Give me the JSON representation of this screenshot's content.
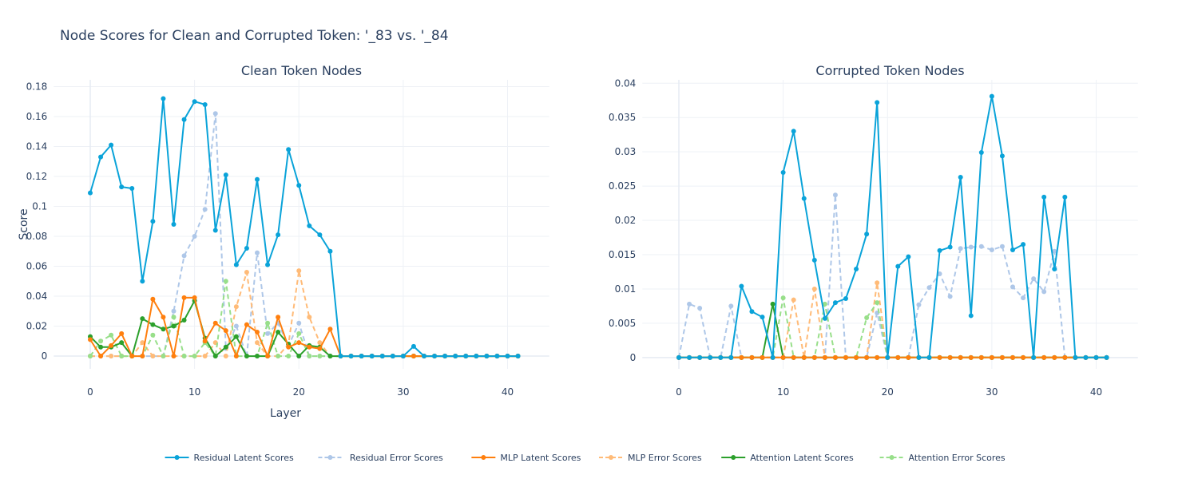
{
  "title": "Node Scores for Clean and Corrupted Token: '_83 vs. '_84",
  "chart_data": [
    {
      "type": "line",
      "title": "Clean Token Nodes",
      "xlabel": "Layer",
      "ylabel": "Score",
      "xlim": [
        -3.5,
        44
      ],
      "ylim": [
        -0.0085,
        0.1845
      ],
      "xticks": [
        0,
        10,
        20,
        30,
        40
      ],
      "yticks": [
        0,
        0.02,
        0.04,
        0.06,
        0.08,
        0.1,
        0.12,
        0.14,
        0.16,
        0.18
      ],
      "ytick_labels": [
        "0",
        "0.02",
        "0.04",
        "0.06",
        "0.08",
        "0.1",
        "0.12",
        "0.14",
        "0.16",
        "0.18"
      ],
      "series": [
        {
          "name": "Residual Latent Scores",
          "values": [
            0.109,
            0.133,
            0.141,
            0.113,
            0.112,
            0.05,
            0.09,
            0.172,
            0.088,
            0.158,
            0.17,
            0.168,
            0.084,
            0.121,
            0.061,
            0.072,
            0.118,
            0.061,
            0.081,
            0.138,
            0.114,
            0.087,
            0.081,
            0.07,
            0,
            0,
            0,
            0,
            0,
            0,
            0,
            0.0065,
            0,
            0,
            0,
            0,
            0,
            0,
            0,
            0,
            0,
            0
          ]
        },
        {
          "name": "Residual Error Scores",
          "values": [
            0,
            0,
            0,
            0,
            0,
            0,
            0,
            0,
            0.03,
            0.067,
            0.08,
            0.098,
            0.162,
            0.005,
            0.02,
            0,
            0.069,
            0.015,
            0.022,
            0.007,
            0.022,
            0,
            0,
            0,
            0,
            0,
            0,
            0,
            0,
            0,
            0,
            0,
            0,
            0,
            0,
            0,
            0,
            0,
            0,
            0,
            0,
            0
          ]
        },
        {
          "name": "MLP Latent Scores",
          "values": [
            0.011,
            0,
            0.007,
            0.015,
            0,
            0,
            0.038,
            0.026,
            0,
            0.039,
            0.039,
            0.01,
            0.022,
            0.017,
            0,
            0.021,
            0.016,
            0,
            0.026,
            0.006,
            0.009,
            0.006,
            0.005,
            0.018,
            0,
            0,
            0,
            0,
            0,
            0,
            0,
            0,
            0,
            0,
            0,
            0,
            0,
            0,
            0,
            0,
            0,
            0
          ]
        },
        {
          "name": "MLP Error Scores",
          "values": [
            0,
            0,
            0,
            0,
            0,
            0.009,
            0,
            0,
            0,
            0,
            0,
            0,
            0.009,
            0,
            0.033,
            0.056,
            0.009,
            0,
            0,
            0.008,
            0.057,
            0.026,
            0.009,
            0,
            0,
            0,
            0,
            0,
            0,
            0,
            0,
            0,
            0,
            0,
            0,
            0,
            0,
            0,
            0,
            0,
            0,
            0
          ]
        },
        {
          "name": "Attention Latent Scores",
          "values": [
            0.013,
            0.006,
            0.006,
            0.009,
            0,
            0.025,
            0.021,
            0.018,
            0.02,
            0.024,
            0.037,
            0.012,
            0,
            0.006,
            0.013,
            0,
            0,
            0,
            0.016,
            0.008,
            0,
            0.007,
            0.006,
            0,
            0,
            0,
            0,
            0,
            0,
            0,
            0,
            0,
            0,
            0,
            0,
            0,
            0,
            0,
            0,
            0,
            0,
            0
          ]
        },
        {
          "name": "Attention Error Scores",
          "values": [
            0,
            0.01,
            0.014,
            0,
            0,
            0,
            0.014,
            0,
            0.026,
            0,
            0,
            0.009,
            0,
            0.05,
            0,
            0,
            0,
            0.022,
            0,
            0,
            0.015,
            0,
            0,
            0,
            0,
            0,
            0,
            0,
            0,
            0,
            0,
            0,
            0,
            0,
            0,
            0,
            0,
            0,
            0,
            0,
            0,
            0
          ]
        }
      ]
    },
    {
      "type": "line",
      "title": "Corrupted Token Nodes",
      "xlabel": "",
      "ylabel": "",
      "xlim": [
        -3.5,
        44
      ],
      "ylim": [
        -0.00165,
        0.0405
      ],
      "xticks": [
        0,
        10,
        20,
        30,
        40
      ],
      "yticks": [
        0,
        0.005,
        0.01,
        0.015,
        0.02,
        0.025,
        0.03,
        0.035,
        0.04
      ],
      "ytick_labels": [
        "0",
        "0.005",
        "0.01",
        "0.015",
        "0.02",
        "0.025",
        "0.03",
        "0.035",
        "0.04"
      ],
      "series": [
        {
          "name": "Residual Latent Scores",
          "values": [
            0,
            0,
            0,
            0,
            0,
            0,
            0.0104,
            0.0067,
            0.0059,
            0,
            0.027,
            0.033,
            0.0232,
            0.0142,
            0.0057,
            0.008,
            0.0086,
            0.0129,
            0.018,
            0.0372,
            0,
            0.0133,
            0.0147,
            0,
            0,
            0.0156,
            0.0161,
            0.0263,
            0.0061,
            0.0299,
            0.0381,
            0.0294,
            0.0157,
            0.0165,
            0,
            0.0234,
            0.0129,
            0.0234,
            0,
            0,
            0,
            0
          ]
        },
        {
          "name": "Residual Error Scores",
          "values": [
            0,
            0.0078,
            0.0072,
            0,
            0,
            0.0075,
            0,
            0,
            0,
            0,
            0,
            0,
            0,
            0,
            0,
            0.0237,
            0,
            0,
            0,
            0.0065,
            0,
            0,
            0,
            0.0077,
            0.0102,
            0.0122,
            0.0089,
            0.0159,
            0.0161,
            0.0162,
            0.0157,
            0.0162,
            0.0103,
            0.0087,
            0.0115,
            0.0096,
            0.0155,
            0,
            0,
            0,
            0,
            0
          ]
        },
        {
          "name": "MLP Latent Scores",
          "values": [
            0,
            0,
            0,
            0,
            0,
            0,
            0,
            0,
            0,
            0,
            0,
            0,
            0,
            0,
            0,
            0,
            0,
            0,
            0,
            0,
            0,
            0,
            0,
            0,
            0,
            0,
            0,
            0,
            0,
            0,
            0,
            0,
            0,
            0,
            0,
            0,
            0,
            0,
            0,
            0,
            0,
            0
          ]
        },
        {
          "name": "MLP Error Scores",
          "values": [
            0,
            0,
            0,
            0,
            0,
            0,
            0,
            0,
            0,
            0,
            0,
            0.0084,
            0,
            0.01,
            0,
            0,
            0,
            0,
            0,
            0.0109,
            0,
            0,
            0,
            0,
            0,
            0,
            0,
            0,
            0,
            0,
            0,
            0,
            0,
            0,
            0,
            0,
            0,
            0,
            0,
            0,
            0,
            0
          ]
        },
        {
          "name": "Attention Latent Scores",
          "values": [
            0,
            0,
            0,
            0,
            0,
            0,
            0,
            0,
            0,
            0.0078,
            0,
            0,
            0,
            0,
            0,
            0,
            0,
            0,
            0,
            0,
            0,
            0,
            0,
            0,
            0,
            0,
            0,
            0,
            0,
            0,
            0,
            0,
            0,
            0,
            0,
            0,
            0,
            0,
            0,
            0,
            0,
            0
          ]
        },
        {
          "name": "Attention Error Scores",
          "values": [
            0,
            0,
            0,
            0,
            0,
            0,
            0,
            0,
            0,
            0,
            0.0087,
            0,
            0,
            0,
            0.0078,
            0,
            0,
            0,
            0.0058,
            0.008,
            0,
            0,
            0,
            0,
            0,
            0,
            0,
            0,
            0,
            0,
            0,
            0,
            0,
            0,
            0,
            0,
            0,
            0,
            0,
            0,
            0,
            0
          ]
        }
      ]
    }
  ],
  "legend": {
    "placement": "bottom-center",
    "items": [
      {
        "label": "Residual Latent Scores",
        "color": "#0aa3d9",
        "dashed": false
      },
      {
        "label": " Residual Error Scores",
        "color": "#aec7e8",
        "dashed": true
      },
      {
        "label": "MLP Latent Scores",
        "color": "#ff7f0e",
        "dashed": false
      },
      {
        "label": "MLP Error Scores",
        "color": "#ffbb78",
        "dashed": true
      },
      {
        "label": "Attention Latent Scores",
        "color": "#2ca02c",
        "dashed": false
      },
      {
        "label": "Attention Error Scores",
        "color": "#98df8a",
        "dashed": true
      }
    ]
  }
}
